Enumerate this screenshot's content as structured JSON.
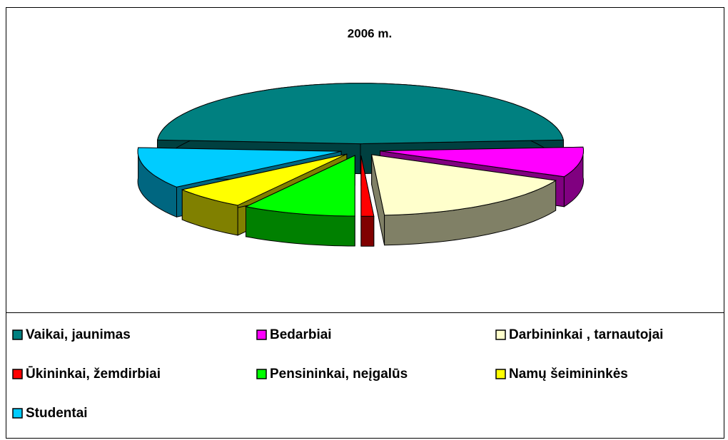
{
  "chart_data": {
    "type": "pie3d",
    "title": "2006 m.",
    "categories": [
      "Vaikai, jaunimas",
      "Bedarbiai",
      "Darbininkai , tarnautojai",
      "Ūkininkai, žemdirbiai",
      "Pensininkai, neįgalūs",
      "Namų šeimininkės",
      "Studentai"
    ],
    "values": [
      48,
      8,
      17,
      1,
      9,
      6,
      11
    ],
    "colors": [
      "#008080",
      "#ff00ff",
      "#ffffcc",
      "#ff0000",
      "#00ff00",
      "#ffff00",
      "#00ccff"
    ],
    "legend": "bottom"
  }
}
